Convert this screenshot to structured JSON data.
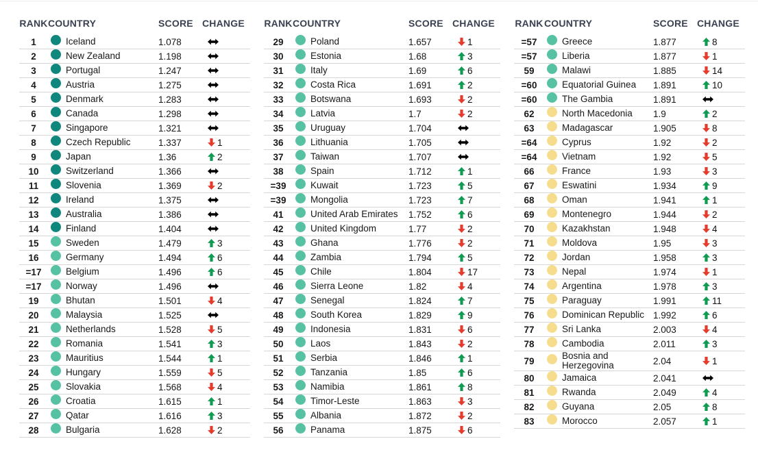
{
  "chart_data": {
    "type": "table",
    "header": {
      "rank": "RANK",
      "country": "COUNTRY",
      "score": "SCORE",
      "change": "CHANGE"
    },
    "colors": {
      "tier_dark": "#0f877c",
      "tier_light": "#57c1a3",
      "tier_yellow": "#f6dd8d",
      "up": "#0f9b51",
      "down": "#e43b2c",
      "same": "#000000",
      "header_text": "#3a4150",
      "divider": "#d6d6d6"
    },
    "groups": [
      {
        "rows": [
          {
            "rank": "1",
            "country": "Iceland",
            "score": "1.078",
            "tier": "dark",
            "change": "same"
          },
          {
            "rank": "2",
            "country": "New Zealand",
            "score": "1.198",
            "tier": "dark",
            "change": "same"
          },
          {
            "rank": "3",
            "country": "Portugal",
            "score": "1.247",
            "tier": "dark",
            "change": "same"
          },
          {
            "rank": "4",
            "country": "Austria",
            "score": "1.275",
            "tier": "dark",
            "change": "same"
          },
          {
            "rank": "5",
            "country": "Denmark",
            "score": "1.283",
            "tier": "dark",
            "change": "same"
          },
          {
            "rank": "6",
            "country": "Canada",
            "score": "1.298",
            "tier": "dark",
            "change": "same"
          },
          {
            "rank": "7",
            "country": "Singapore",
            "score": "1.321",
            "tier": "dark",
            "change": "same"
          },
          {
            "rank": "8",
            "country": "Czech Republic",
            "score": "1.337",
            "tier": "dark",
            "change": "down",
            "delta": "1"
          },
          {
            "rank": "9",
            "country": "Japan",
            "score": "1.36",
            "tier": "dark",
            "change": "up",
            "delta": "2"
          },
          {
            "rank": "10",
            "country": "Switzerland",
            "score": "1.366",
            "tier": "dark",
            "change": "same"
          },
          {
            "rank": "11",
            "country": "Slovenia",
            "score": "1.369",
            "tier": "dark",
            "change": "down",
            "delta": "2"
          },
          {
            "rank": "12",
            "country": "Ireland",
            "score": "1.375",
            "tier": "dark",
            "change": "same"
          },
          {
            "rank": "13",
            "country": "Australia",
            "score": "1.386",
            "tier": "dark",
            "change": "same"
          },
          {
            "rank": "14",
            "country": "Finland",
            "score": "1.404",
            "tier": "dark",
            "change": "same"
          },
          {
            "rank": "15",
            "country": "Sweden",
            "score": "1.479",
            "tier": "light",
            "change": "up",
            "delta": "3"
          },
          {
            "rank": "16",
            "country": "Germany",
            "score": "1.494",
            "tier": "light",
            "change": "up",
            "delta": "6"
          },
          {
            "rank": "=17",
            "country": "Belgium",
            "score": "1.496",
            "tier": "light",
            "change": "up",
            "delta": "6"
          },
          {
            "rank": "=17",
            "country": "Norway",
            "score": "1.496",
            "tier": "light",
            "change": "same"
          },
          {
            "rank": "19",
            "country": "Bhutan",
            "score": "1.501",
            "tier": "light",
            "change": "down",
            "delta": "4"
          },
          {
            "rank": "20",
            "country": "Malaysia",
            "score": "1.525",
            "tier": "light",
            "change": "same"
          },
          {
            "rank": "21",
            "country": "Netherlands",
            "score": "1.528",
            "tier": "light",
            "change": "down",
            "delta": "5"
          },
          {
            "rank": "22",
            "country": "Romania",
            "score": "1.541",
            "tier": "light",
            "change": "up",
            "delta": "3"
          },
          {
            "rank": "23",
            "country": "Mauritius",
            "score": "1.544",
            "tier": "light",
            "change": "up",
            "delta": "1"
          },
          {
            "rank": "24",
            "country": "Hungary",
            "score": "1.559",
            "tier": "light",
            "change": "down",
            "delta": "5"
          },
          {
            "rank": "25",
            "country": "Slovakia",
            "score": "1.568",
            "tier": "light",
            "change": "down",
            "delta": "4"
          },
          {
            "rank": "26",
            "country": "Croatia",
            "score": "1.615",
            "tier": "light",
            "change": "up",
            "delta": "1"
          },
          {
            "rank": "27",
            "country": "Qatar",
            "score": "1.616",
            "tier": "light",
            "change": "up",
            "delta": "3"
          },
          {
            "rank": "28",
            "country": "Bulgaria",
            "score": "1.628",
            "tier": "light",
            "change": "down",
            "delta": "2"
          }
        ]
      },
      {
        "rows": [
          {
            "rank": "29",
            "country": "Poland",
            "score": "1.657",
            "tier": "light",
            "change": "down",
            "delta": "1"
          },
          {
            "rank": "30",
            "country": "Estonia",
            "score": "1.68",
            "tier": "light",
            "change": "up",
            "delta": "3"
          },
          {
            "rank": "31",
            "country": "Italy",
            "score": "1.69",
            "tier": "light",
            "change": "up",
            "delta": "6"
          },
          {
            "rank": "32",
            "country": "Costa Rica",
            "score": "1.691",
            "tier": "light",
            "change": "up",
            "delta": "2"
          },
          {
            "rank": "33",
            "country": "Botswana",
            "score": "1.693",
            "tier": "light",
            "change": "down",
            "delta": "2"
          },
          {
            "rank": "34",
            "country": "Latvia",
            "score": "1.7",
            "tier": "light",
            "change": "down",
            "delta": "2"
          },
          {
            "rank": "35",
            "country": "Uruguay",
            "score": "1.704",
            "tier": "light",
            "change": "same"
          },
          {
            "rank": "36",
            "country": "Lithuania",
            "score": "1.705",
            "tier": "light",
            "change": "same"
          },
          {
            "rank": "37",
            "country": "Taiwan",
            "score": "1.707",
            "tier": "light",
            "change": "same"
          },
          {
            "rank": "38",
            "country": "Spain",
            "score": "1.712",
            "tier": "light",
            "change": "up",
            "delta": "1"
          },
          {
            "rank": "=39",
            "country": "Kuwait",
            "score": "1.723",
            "tier": "light",
            "change": "up",
            "delta": "5"
          },
          {
            "rank": "=39",
            "country": "Mongolia",
            "score": "1.723",
            "tier": "light",
            "change": "up",
            "delta": "7"
          },
          {
            "rank": "41",
            "country": "United Arab Emirates",
            "score": "1.752",
            "tier": "light",
            "change": "up",
            "delta": "6"
          },
          {
            "rank": "42",
            "country": "United Kingdom",
            "score": "1.77",
            "tier": "light",
            "change": "down",
            "delta": "2"
          },
          {
            "rank": "43",
            "country": "Ghana",
            "score": "1.776",
            "tier": "light",
            "change": "down",
            "delta": "2"
          },
          {
            "rank": "44",
            "country": "Zambia",
            "score": "1.794",
            "tier": "light",
            "change": "up",
            "delta": "5"
          },
          {
            "rank": "45",
            "country": "Chile",
            "score": "1.804",
            "tier": "light",
            "change": "down",
            "delta": "17"
          },
          {
            "rank": "46",
            "country": "Sierra Leone",
            "score": "1.82",
            "tier": "light",
            "change": "down",
            "delta": "4"
          },
          {
            "rank": "47",
            "country": "Senegal",
            "score": "1.824",
            "tier": "light",
            "change": "up",
            "delta": "7"
          },
          {
            "rank": "48",
            "country": "South Korea",
            "score": "1.829",
            "tier": "light",
            "change": "up",
            "delta": "9"
          },
          {
            "rank": "49",
            "country": "Indonesia",
            "score": "1.831",
            "tier": "light",
            "change": "down",
            "delta": "6"
          },
          {
            "rank": "50",
            "country": "Laos",
            "score": "1.843",
            "tier": "light",
            "change": "down",
            "delta": "2"
          },
          {
            "rank": "51",
            "country": "Serbia",
            "score": "1.846",
            "tier": "light",
            "change": "up",
            "delta": "1"
          },
          {
            "rank": "52",
            "country": "Tanzania",
            "score": "1.85",
            "tier": "light",
            "change": "up",
            "delta": "6"
          },
          {
            "rank": "53",
            "country": "Namibia",
            "score": "1.861",
            "tier": "light",
            "change": "up",
            "delta": "8"
          },
          {
            "rank": "54",
            "country": "Timor-Leste",
            "score": "1.863",
            "tier": "light",
            "change": "down",
            "delta": "3"
          },
          {
            "rank": "55",
            "country": "Albania",
            "score": "1.872",
            "tier": "light",
            "change": "down",
            "delta": "2"
          },
          {
            "rank": "56",
            "country": "Panama",
            "score": "1.875",
            "tier": "light",
            "change": "down",
            "delta": "6"
          }
        ]
      },
      {
        "rows": [
          {
            "rank": "=57",
            "country": "Greece",
            "score": "1.877",
            "tier": "light",
            "change": "up",
            "delta": "8"
          },
          {
            "rank": "=57",
            "country": "Liberia",
            "score": "1.877",
            "tier": "light",
            "change": "down",
            "delta": "1"
          },
          {
            "rank": "59",
            "country": "Malawi",
            "score": "1.885",
            "tier": "light",
            "change": "down",
            "delta": "14"
          },
          {
            "rank": "=60",
            "country": "Equatorial Guinea",
            "score": "1.891",
            "tier": "light",
            "change": "up",
            "delta": "10"
          },
          {
            "rank": "=60",
            "country": "The Gambia",
            "score": "1.891",
            "tier": "light",
            "change": "same"
          },
          {
            "rank": "62",
            "country": "North Macedonia",
            "score": "1.9",
            "tier": "yellow",
            "change": "up",
            "delta": "2"
          },
          {
            "rank": "63",
            "country": "Madagascar",
            "score": "1.905",
            "tier": "yellow",
            "change": "down",
            "delta": "8"
          },
          {
            "rank": "=64",
            "country": "Cyprus",
            "score": "1.92",
            "tier": "yellow",
            "change": "down",
            "delta": "2"
          },
          {
            "rank": "=64",
            "country": "Vietnam",
            "score": "1.92",
            "tier": "yellow",
            "change": "down",
            "delta": "5"
          },
          {
            "rank": "66",
            "country": "France",
            "score": "1.93",
            "tier": "yellow",
            "change": "down",
            "delta": "3"
          },
          {
            "rank": "67",
            "country": "Eswatini",
            "score": "1.934",
            "tier": "yellow",
            "change": "up",
            "delta": "9"
          },
          {
            "rank": "68",
            "country": "Oman",
            "score": "1.941",
            "tier": "yellow",
            "change": "up",
            "delta": "1"
          },
          {
            "rank": "69",
            "country": "Montenegro",
            "score": "1.944",
            "tier": "yellow",
            "change": "down",
            "delta": "2"
          },
          {
            "rank": "70",
            "country": "Kazakhstan",
            "score": "1.948",
            "tier": "yellow",
            "change": "down",
            "delta": "4"
          },
          {
            "rank": "71",
            "country": "Moldova",
            "score": "1.95",
            "tier": "yellow",
            "change": "down",
            "delta": "3"
          },
          {
            "rank": "72",
            "country": "Jordan",
            "score": "1.958",
            "tier": "yellow",
            "change": "up",
            "delta": "3"
          },
          {
            "rank": "73",
            "country": "Nepal",
            "score": "1.974",
            "tier": "yellow",
            "change": "down",
            "delta": "1"
          },
          {
            "rank": "74",
            "country": "Argentina",
            "score": "1.978",
            "tier": "yellow",
            "change": "up",
            "delta": "3"
          },
          {
            "rank": "75",
            "country": "Paraguay",
            "score": "1.991",
            "tier": "yellow",
            "change": "up",
            "delta": "11"
          },
          {
            "rank": "76",
            "country": "Dominican Republic",
            "score": "1.992",
            "tier": "yellow",
            "change": "up",
            "delta": "6"
          },
          {
            "rank": "77",
            "country": "Sri Lanka",
            "score": "2.003",
            "tier": "yellow",
            "change": "down",
            "delta": "4"
          },
          {
            "rank": "78",
            "country": "Cambodia",
            "score": "2.011",
            "tier": "yellow",
            "change": "up",
            "delta": "3"
          },
          {
            "rank": "79",
            "country": "Bosnia and Herzegovina",
            "score": "2.04",
            "tier": "yellow",
            "change": "down",
            "delta": "1"
          },
          {
            "rank": "80",
            "country": "Jamaica",
            "score": "2.041",
            "tier": "yellow",
            "change": "same"
          },
          {
            "rank": "81",
            "country": "Rwanda",
            "score": "2.049",
            "tier": "yellow",
            "change": "up",
            "delta": "4"
          },
          {
            "rank": "82",
            "country": "Guyana",
            "score": "2.05",
            "tier": "yellow",
            "change": "up",
            "delta": "8"
          },
          {
            "rank": "83",
            "country": "Morocco",
            "score": "2.057",
            "tier": "yellow",
            "change": "up",
            "delta": "1"
          }
        ]
      }
    ]
  }
}
